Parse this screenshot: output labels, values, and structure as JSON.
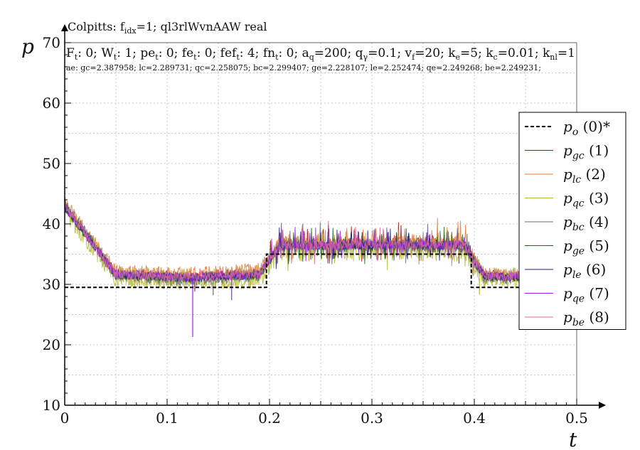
{
  "chart_data": {
    "type": "line",
    "title": {
      "base": "Colpitts: f",
      "sub": "idx",
      "rest": "=1; ql3rlWvnAAW real"
    },
    "params": [
      {
        "base": "F",
        "sub": "t",
        "val": ": 0; "
      },
      {
        "base": "W",
        "sub": "t",
        "val": ": 1; "
      },
      {
        "base": "pe",
        "sub": "t",
        "val": ": 0; "
      },
      {
        "base": "fe",
        "sub": "t",
        "val": ": 0; "
      },
      {
        "base": "fef",
        "sub": "t",
        "val": ": 4; "
      },
      {
        "base": "fn",
        "sub": "t",
        "val": ": 0; "
      },
      {
        "base": "a",
        "sub": "q",
        "val": "=200; "
      },
      {
        "base": "q",
        "sub": "γ",
        "val": "=0.1; "
      },
      {
        "base": "v",
        "sub": "f",
        "val": "=20; "
      },
      {
        "base": "k",
        "sub": "e",
        "val": "=5; "
      },
      {
        "base": "k",
        "sub": "c",
        "val": "=0.01; "
      },
      {
        "base": "k",
        "sub": "nl",
        "val": "=1"
      }
    ],
    "ae_line": "ae: gc=2.387958; lc=2.289731; qc=2.258075; bc=2.299407; ge=2.228107; le=2.252474; qe=2.249268; be=2.249231;",
    "xlabel": "t",
    "ylabel": "p",
    "xlim": [
      0,
      0.5
    ],
    "ylim": [
      10,
      70
    ],
    "xticks": [
      "0",
      "0.1",
      "0.2",
      "0.3",
      "0.4",
      "0.5"
    ],
    "yticks": [
      "10",
      "20",
      "30",
      "40",
      "50",
      "60",
      "70"
    ],
    "grid": true,
    "legend_position": "right",
    "setpoint": {
      "name": {
        "base": "p",
        "sub": "o",
        "tag": " (0)*"
      },
      "color": "#000000",
      "x": [
        0,
        0.197,
        0.197,
        0.2,
        0.2,
        0.397,
        0.397,
        0.4,
        0.4,
        0.5
      ],
      "y": [
        29.5,
        29.5,
        35,
        35,
        35,
        35,
        29.5,
        29.5,
        29.5,
        29.5
      ]
    },
    "series": [
      {
        "name": {
          "base": "p",
          "sub": "gc",
          "tag": " (1)"
        },
        "color": "#8b1a1a",
        "base": [
          40.5,
          31.8,
          31.2,
          31.8,
          36.5,
          36.8,
          36.8,
          31.5,
          31.2
        ],
        "noise": 0.9
      },
      {
        "name": {
          "base": "p",
          "sub": "lc",
          "tag": " (2)"
        },
        "color": "#e07b39",
        "base": [
          41.0,
          32.2,
          31.8,
          32.5,
          37.0,
          37.2,
          37.0,
          31.8,
          31.4
        ],
        "noise": 1.1
      },
      {
        "name": {
          "base": "p",
          "sub": "qc",
          "tag": " (3)"
        },
        "color": "#b5b833",
        "base": [
          40.0,
          31.2,
          30.8,
          31.0,
          35.5,
          35.8,
          35.5,
          31.0,
          31.0
        ],
        "noise": 1.8
      },
      {
        "name": {
          "base": "p",
          "sub": "bc",
          "tag": " (4)"
        },
        "color": "#6e6e6e",
        "base": [
          40.8,
          31.5,
          30.5,
          31.5,
          36.8,
          36.5,
          36.2,
          31.0,
          31.0
        ],
        "noise": 1.0
      },
      {
        "name": {
          "base": "p",
          "sub": "ge",
          "tag": " (5)"
        },
        "color": "#1c6b1c",
        "base": [
          40.2,
          31.5,
          31.0,
          31.5,
          36.2,
          36.4,
          36.3,
          31.2,
          31.0
        ],
        "noise": 0.7
      },
      {
        "name": {
          "base": "p",
          "sub": "le",
          "tag": " (6)"
        },
        "color": "#1a237e",
        "base": [
          40.3,
          31.6,
          31.1,
          31.6,
          36.3,
          36.5,
          36.4,
          31.3,
          31.1
        ],
        "noise": 0.7
      },
      {
        "name": {
          "base": "p",
          "sub": "qe",
          "tag": " (7)"
        },
        "color": "#a020f0",
        "base": [
          40.4,
          31.7,
          31.2,
          31.7,
          36.4,
          36.6,
          36.5,
          31.4,
          31.2
        ],
        "noise": 0.8
      },
      {
        "name": {
          "base": "p",
          "sub": "be",
          "tag": " (8)"
        },
        "color": "#d86a9a",
        "base": [
          40.4,
          31.6,
          31.2,
          31.8,
          36.4,
          36.6,
          36.4,
          31.4,
          31.1
        ],
        "noise": 0.8
      }
    ],
    "series_knots_x": [
      0,
      0.05,
      0.12,
      0.19,
      0.21,
      0.3,
      0.39,
      0.41,
      0.5
    ],
    "spikes": [
      {
        "series": 6,
        "x": 0.125,
        "y": 21.3
      },
      {
        "series": 6,
        "x": 0.163,
        "y": 27.4
      },
      {
        "series": 6,
        "x": 0.127,
        "y": 28.8
      },
      {
        "series": 3,
        "x": 0.145,
        "y": 28.2
      },
      {
        "series": 2,
        "x": 0.405,
        "y": 28.3
      }
    ]
  }
}
